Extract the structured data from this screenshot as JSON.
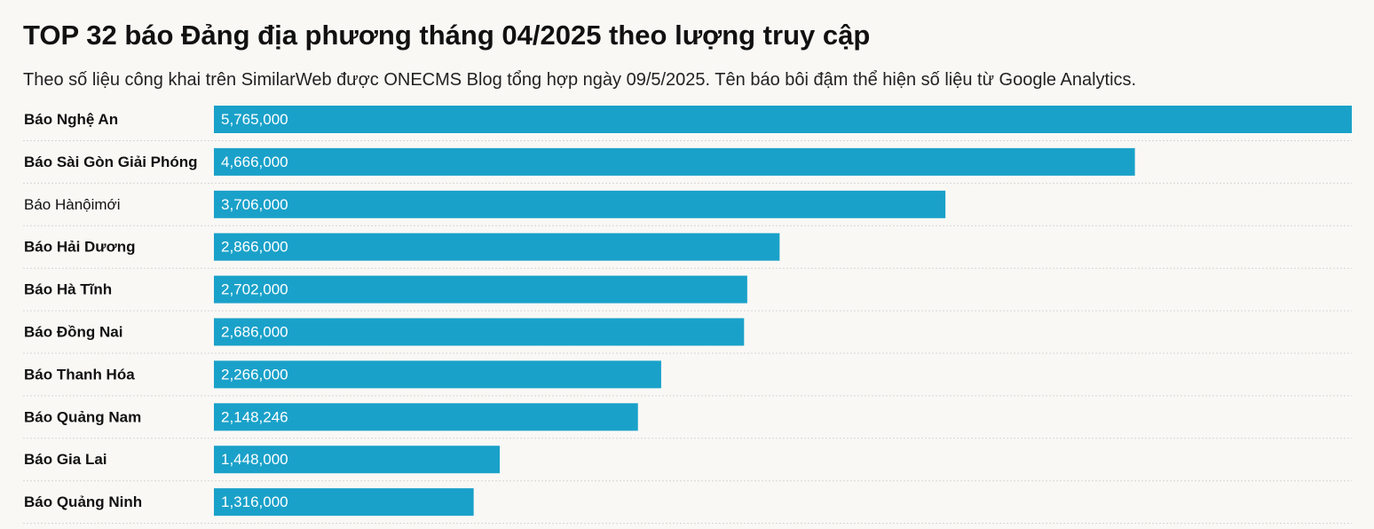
{
  "chart_data": {
    "type": "bar",
    "orientation": "horizontal",
    "title": "TOP 32 báo Đảng địa phương tháng 04/2025 theo lượng truy cập",
    "subtitle": "Theo số liệu công khai trên SimilarWeb được ONECMS Blog tổng hợp ngày 09/5/2025. Tên báo bôi đậm thể hiện số liệu từ Google Analytics.",
    "categories": [
      "Báo Nghệ An",
      "Báo Sài Gòn Giải Phóng",
      "Báo Hànộimới",
      "Báo Hải Dương",
      "Báo Hà Tĩnh",
      "Báo Đồng Nai",
      "Báo Thanh Hóa",
      "Báo Quảng Nam",
      "Báo Gia Lai",
      "Báo Quảng Ninh"
    ],
    "values": [
      5765000,
      4666000,
      3706000,
      2866000,
      2702000,
      2686000,
      2266000,
      2148246,
      1448000,
      1316000
    ],
    "value_labels": [
      "5,765,000",
      "4,666,000",
      "3,706,000",
      "2,866,000",
      "2,702,000",
      "2,686,000",
      "2,266,000",
      "2,148,246",
      "1,448,000",
      "1,316,000"
    ],
    "bold_names": [
      true,
      true,
      false,
      true,
      true,
      true,
      true,
      true,
      true,
      true
    ],
    "xlim": [
      0,
      5765000
    ],
    "grid": false,
    "colors": {
      "bar": "#1aa1c9",
      "separator": "#d6d6d6",
      "background": "#f9f8f5"
    }
  }
}
